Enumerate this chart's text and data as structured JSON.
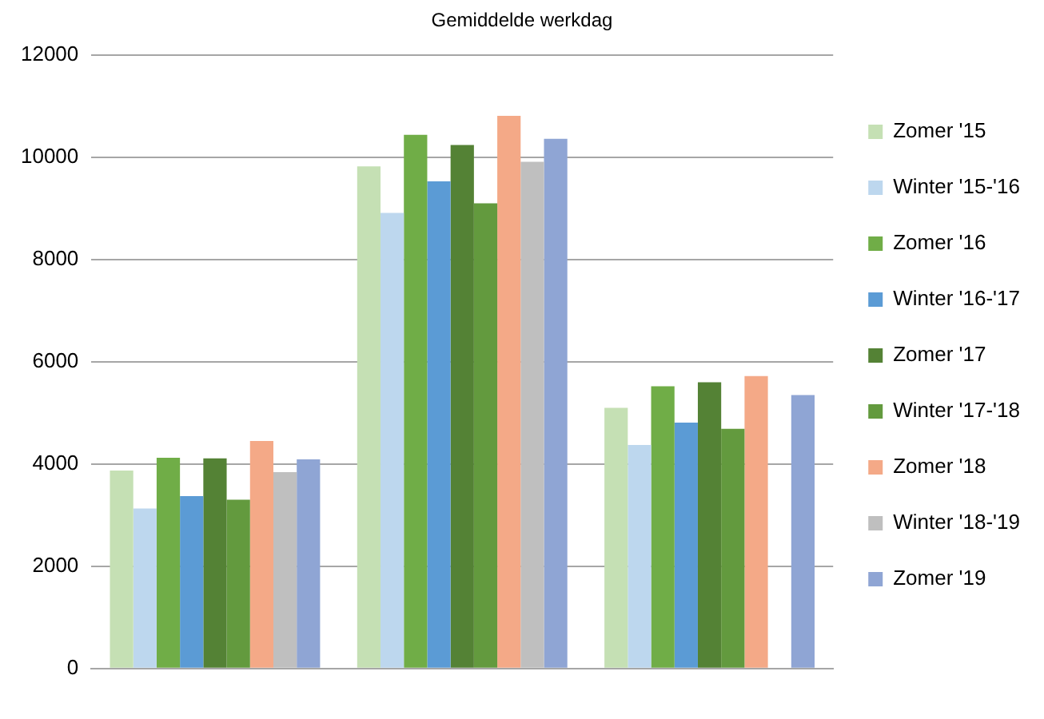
{
  "chart_data": {
    "type": "bar",
    "title": "Gemiddelde werkdag",
    "categories": [
      null,
      null,
      null
    ],
    "series": [
      {
        "name": "Zomer '15",
        "color": "#c5e0b4",
        "values": [
          3870,
          9820,
          5100
        ]
      },
      {
        "name": "Winter '15-'16",
        "color": "#bdd7ee",
        "values": [
          3130,
          8910,
          4370
        ]
      },
      {
        "name": "Zomer '16",
        "color": "#70ad47",
        "values": [
          4120,
          10440,
          5520
        ]
      },
      {
        "name": "Winter '16-'17",
        "color": "#5b9bd5",
        "values": [
          3370,
          9530,
          4810
        ]
      },
      {
        "name": "Zomer '17",
        "color": "#548235",
        "values": [
          4110,
          10240,
          5600
        ]
      },
      {
        "name": "Winter '17-'18",
        "color": "#639a3e",
        "values": [
          3300,
          9100,
          4690
        ]
      },
      {
        "name": "Zomer '18",
        "color": "#f4a987",
        "values": [
          4450,
          10810,
          5720
        ]
      },
      {
        "name": "Winter '18-'19",
        "color": "#bfbfbf",
        "values": [
          3840,
          9910,
          null
        ]
      },
      {
        "name": "Zomer '19",
        "color": "#8fa5d4",
        "values": [
          4090,
          10360,
          5350
        ]
      }
    ],
    "ylim": [
      0,
      12000
    ],
    "yticks": [
      0,
      2000,
      4000,
      6000,
      8000,
      10000,
      12000
    ],
    "grid": "y",
    "legend": "right"
  }
}
